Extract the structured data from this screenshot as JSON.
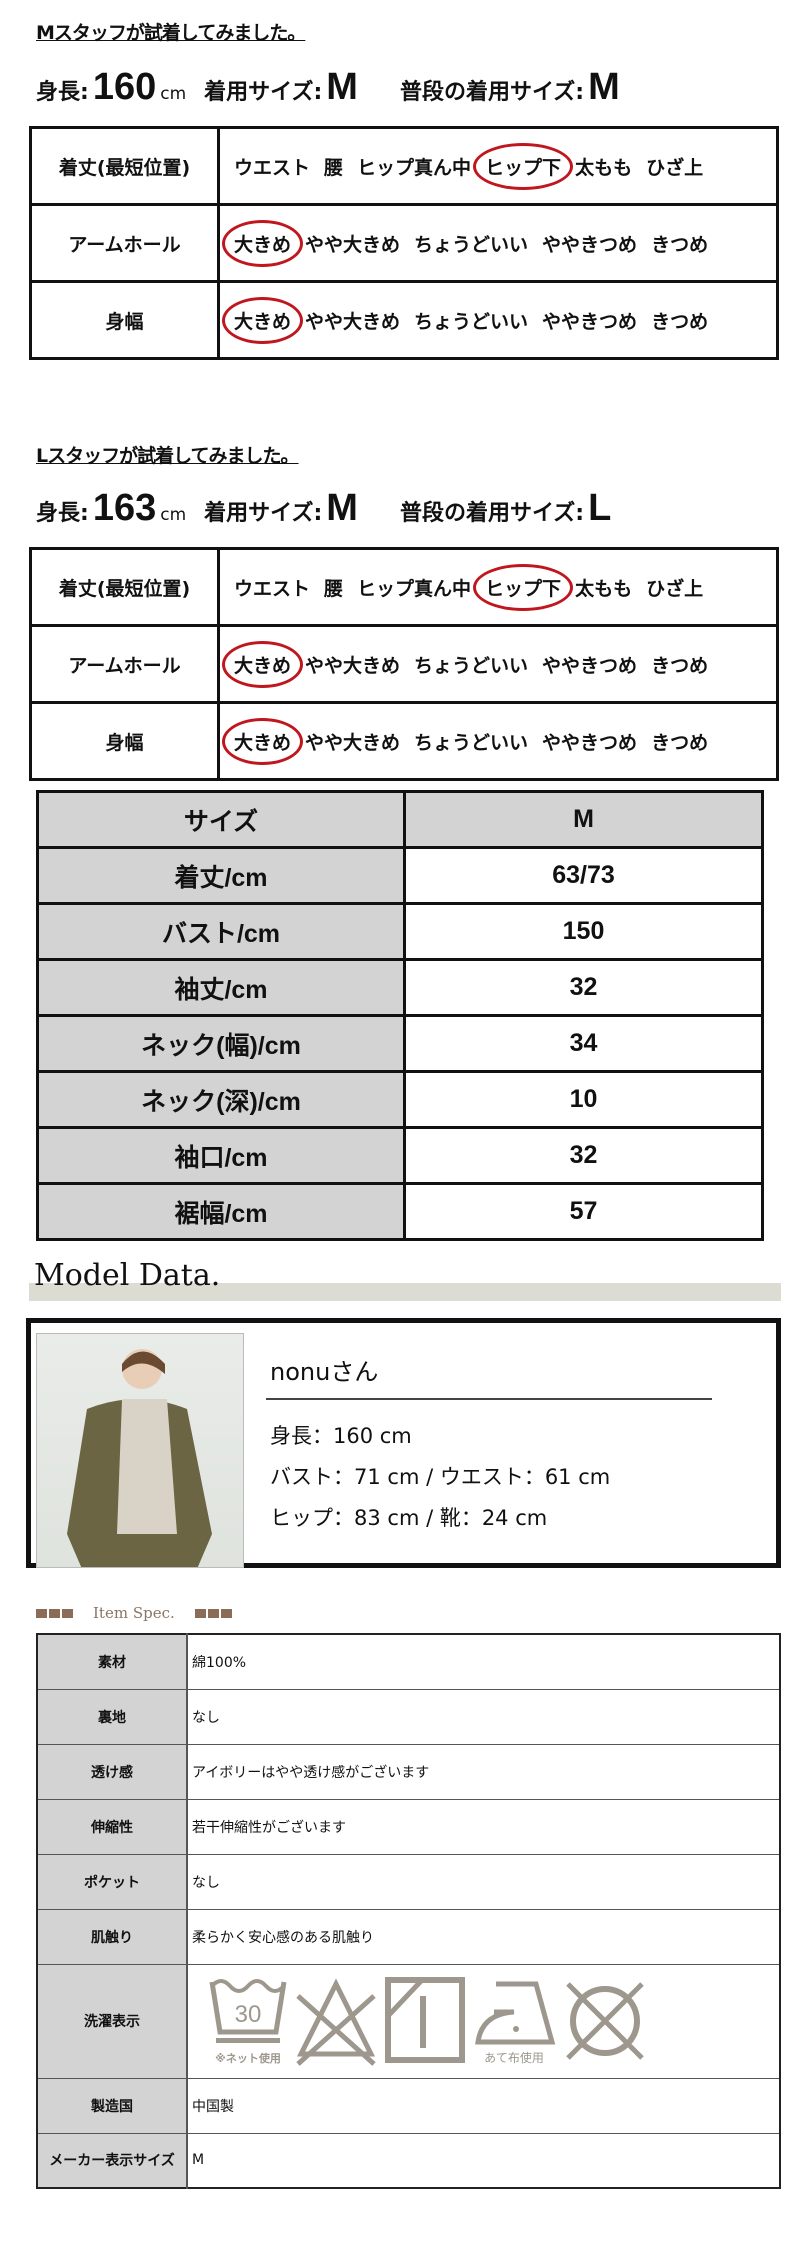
{
  "m_staff": {
    "title": "Mスタッフが試着してみました。",
    "height_label": "身長:",
    "height_value": "160",
    "height_unit": "cm",
    "worn_label": "着用サイズ:",
    "worn_value": "M",
    "usual_label": "普段の着用サイズ:",
    "usual_value": "M",
    "rows": [
      {
        "label": "着丈(最短位置)",
        "options": [
          "ウエスト",
          "腰",
          "ヒップ真ん中",
          "ヒップ下",
          "太もも",
          "ひざ上"
        ],
        "selected": 3
      },
      {
        "label": "アームホール",
        "options": [
          "大きめ",
          "やや大きめ",
          "ちょうどいい",
          "ややきつめ",
          "きつめ"
        ],
        "selected": 0
      },
      {
        "label": "身幅",
        "options": [
          "大きめ",
          "やや大きめ",
          "ちょうどいい",
          "ややきつめ",
          "きつめ"
        ],
        "selected": 0
      }
    ]
  },
  "l_staff": {
    "title": "Lスタッフが試着してみました。",
    "height_label": "身長:",
    "height_value": "163",
    "height_unit": "cm",
    "worn_label": "着用サイズ:",
    "worn_value": "M",
    "usual_label": "普段の着用サイズ:",
    "usual_value": "L",
    "rows": [
      {
        "label": "着丈(最短位置)",
        "options": [
          "ウエスト",
          "腰",
          "ヒップ真ん中",
          "ヒップ下",
          "太もも",
          "ひざ上"
        ],
        "selected": 3
      },
      {
        "label": "アームホール",
        "options": [
          "大きめ",
          "やや大きめ",
          "ちょうどいい",
          "ややきつめ",
          "きつめ"
        ],
        "selected": 0
      },
      {
        "label": "身幅",
        "options": [
          "大きめ",
          "やや大きめ",
          "ちょうどいい",
          "ややきつめ",
          "きつめ"
        ],
        "selected": 0
      }
    ]
  },
  "size_table": {
    "header": [
      "サイズ",
      "M"
    ],
    "rows": [
      [
        "着丈/cm",
        "63/73"
      ],
      [
        "バスト/cm",
        "150"
      ],
      [
        "袖丈/cm",
        "32"
      ],
      [
        "ネック(幅)/cm",
        "34"
      ],
      [
        "ネック(深)/cm",
        "10"
      ],
      [
        "袖口/cm",
        "32"
      ],
      [
        "裾幅/cm",
        "57"
      ]
    ]
  },
  "model": {
    "title": "Model Data.",
    "name": "nonuさん",
    "line1": "身長：160 cm",
    "line2": "バスト：71 cm / ウエスト：61 cm",
    "line3": "ヒップ：83 cm / 靴：24 cm"
  },
  "item_spec": {
    "title": "Item Spec.",
    "rows": [
      {
        "label": "素材",
        "value": "綿100%"
      },
      {
        "label": "裏地",
        "value": "なし"
      },
      {
        "label": "透け感",
        "value": "アイボリーはやや透け感がございます"
      },
      {
        "label": "伸縮性",
        "value": "若干伸縮性がございます"
      },
      {
        "label": "ポケット",
        "value": "なし"
      },
      {
        "label": "肌触り",
        "value": "柔らかく安心感のある肌触り"
      },
      {
        "label": "洗濯表示",
        "value": null
      },
      {
        "label": "製造国",
        "value": "中国製"
      },
      {
        "label": "メーカー表示サイズ",
        "value": "M"
      }
    ],
    "care": {
      "wash_temp": "30",
      "wash_note": "※ネット使用",
      "iron_note": "あて布使用",
      "icons": [
        "wash-30-icon",
        "no-bleach-icon",
        "line-dry-shade-icon",
        "iron-low-icon",
        "no-dry-clean-icon"
      ],
      "icon_color": "#9e978d"
    }
  },
  "colors": {
    "circle": "#c0161d",
    "header_gray": "#d3d3d3",
    "band": "#dcdcd2",
    "accent_brown": "#8b6d57"
  }
}
